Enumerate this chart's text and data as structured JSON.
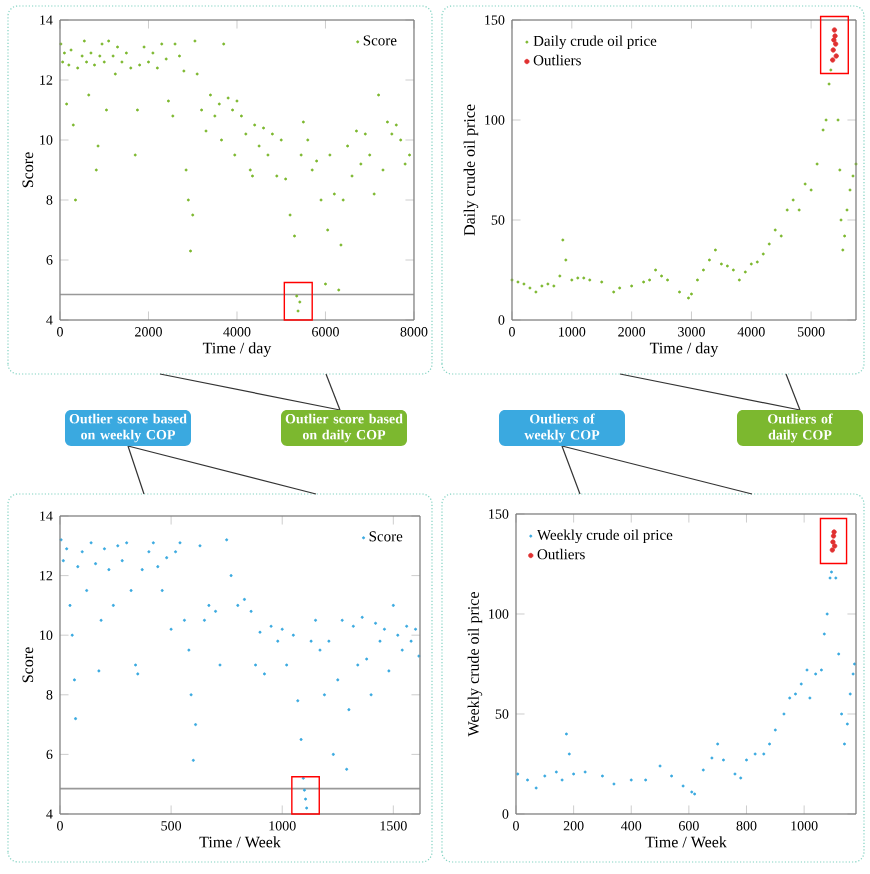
{
  "chart_data": [
    {
      "type": "scatter",
      "xlabel": "Time / day",
      "ylabel": "Score",
      "xlim": [
        0,
        8000
      ],
      "ylim": [
        4,
        14
      ],
      "xticks": [
        0,
        2000,
        4000,
        6000,
        8000
      ],
      "yticks": [
        4,
        6,
        8,
        10,
        12,
        14
      ],
      "legend": "top right",
      "ref_lines": [
        {
          "axis": "y",
          "value": 4.85,
          "color": "#999999"
        }
      ],
      "series": [
        {
          "name": "Score",
          "color": "#7cb82f",
          "x": [
            20,
            60,
            100,
            150,
            200,
            250,
            300,
            350,
            400,
            500,
            550,
            600,
            650,
            700,
            780,
            820,
            860,
            900,
            950,
            1000,
            1050,
            1100,
            1200,
            1250,
            1300,
            1400,
            1500,
            1600,
            1700,
            1750,
            1800,
            1900,
            2000,
            2100,
            2200,
            2300,
            2400,
            2450,
            2550,
            2600,
            2700,
            2800,
            2850,
            2900,
            2950,
            3000,
            3050,
            3100,
            3200,
            3300,
            3400,
            3500,
            3600,
            3650,
            3700,
            3800,
            3900,
            3950,
            4000,
            4100,
            4200,
            4300,
            4350,
            4400,
            4500,
            4600,
            4700,
            4800,
            4900,
            5000,
            5100,
            5200,
            5300,
            5350,
            5380,
            5420,
            5450,
            5500,
            5600,
            5700,
            5800,
            5900,
            6000,
            6050,
            6100,
            6200,
            6300,
            6350,
            6400,
            6500,
            6600,
            6700,
            6800,
            6900,
            7000,
            7100,
            7200,
            7300,
            7400,
            7500,
            7600,
            7700,
            7800,
            7900
          ],
          "values": [
            13.2,
            12.6,
            12.9,
            11.2,
            12.5,
            13.0,
            10.5,
            8.0,
            12.4,
            12.8,
            13.3,
            12.6,
            11.5,
            12.9,
            12.5,
            9.0,
            9.8,
            12.8,
            13.2,
            12.6,
            11.0,
            13.3,
            12.8,
            12.2,
            13.1,
            12.6,
            12.9,
            12.4,
            9.5,
            11.0,
            12.5,
            13.1,
            12.6,
            12.9,
            12.4,
            13.2,
            12.7,
            11.3,
            10.8,
            13.2,
            12.8,
            12.3,
            9.0,
            8.0,
            6.3,
            7.5,
            13.3,
            12.2,
            11.0,
            10.3,
            11.5,
            10.8,
            11.2,
            10.0,
            13.2,
            11.4,
            11.0,
            9.5,
            11.3,
            10.8,
            10.2,
            9.0,
            8.8,
            10.5,
            9.8,
            10.4,
            9.5,
            10.2,
            8.8,
            10.0,
            8.7,
            7.5,
            6.8,
            4.8,
            4.3,
            4.6,
            9.5,
            10.6,
            10.0,
            9.0,
            9.3,
            8.0,
            5.2,
            7.0,
            9.5,
            8.2,
            5.0,
            6.5,
            8.0,
            9.8,
            8.8,
            10.3,
            9.2,
            10.2,
            9.5,
            8.2,
            11.5,
            9.0,
            10.6,
            10.2,
            10.5,
            10.0,
            9.2,
            9.5
          ]
        }
      ]
    },
    {
      "type": "scatter",
      "xlabel": "Time / day",
      "ylabel": "Daily crude oil price",
      "xlim": [
        0,
        5750
      ],
      "ylim": [
        0,
        150
      ],
      "xticks": [
        0,
        1000,
        2000,
        3000,
        4000,
        5000
      ],
      "yticks": [
        0,
        50,
        100,
        150
      ],
      "legend": "top left",
      "series": [
        {
          "name": "Daily crude oil price",
          "color": "#7cb82f",
          "x": [
            0,
            100,
            200,
            300,
            400,
            500,
            600,
            700,
            800,
            850,
            900,
            1000,
            1100,
            1200,
            1300,
            1500,
            1700,
            1800,
            2000,
            2200,
            2300,
            2400,
            2500,
            2600,
            2800,
            2950,
            3000,
            3100,
            3200,
            3300,
            3400,
            3500,
            3600,
            3700,
            3800,
            3900,
            4000,
            4100,
            4200,
            4300,
            4400,
            4500,
            4600,
            4700,
            4800,
            4900,
            5000,
            5100,
            5200,
            5250,
            5300,
            5330,
            5450,
            5480,
            5500,
            5530,
            5560,
            5600,
            5650,
            5700,
            5750
          ],
          "values": [
            20,
            19,
            18,
            16,
            14,
            17,
            18,
            17,
            22,
            40,
            30,
            20,
            21,
            21,
            20,
            19,
            14,
            16,
            17,
            19,
            20,
            25,
            22,
            20,
            14,
            11,
            13,
            20,
            25,
            30,
            35,
            28,
            27,
            25,
            20,
            24,
            28,
            29,
            33,
            38,
            45,
            42,
            55,
            60,
            55,
            68,
            65,
            78,
            95,
            100,
            118,
            125,
            100,
            75,
            50,
            35,
            42,
            55,
            65,
            72,
            78
          ]
        },
        {
          "name": "Outliers",
          "color": "#e03030",
          "x": [
            5360,
            5370,
            5380,
            5390,
            5400,
            5410,
            5420
          ],
          "values": [
            130,
            135,
            140,
            145,
            142,
            138,
            132
          ]
        }
      ]
    },
    {
      "type": "scatter",
      "xlabel": "Time / Week",
      "ylabel": "Score",
      "xlim": [
        0,
        1620
      ],
      "ylim": [
        4,
        14
      ],
      "xticks": [
        0,
        500,
        1000,
        1500
      ],
      "yticks": [
        4,
        6,
        8,
        10,
        12,
        14
      ],
      "legend": "top right",
      "ref_lines": [
        {
          "axis": "y",
          "value": 4.85,
          "color": "#999999"
        }
      ],
      "series": [
        {
          "name": "Score",
          "color": "#3aa9e0",
          "x": [
            5,
            15,
            30,
            45,
            55,
            65,
            70,
            80,
            100,
            120,
            140,
            160,
            175,
            185,
            200,
            220,
            240,
            260,
            280,
            300,
            320,
            340,
            350,
            370,
            400,
            420,
            440,
            460,
            480,
            500,
            520,
            540,
            560,
            580,
            590,
            600,
            610,
            630,
            650,
            670,
            700,
            720,
            750,
            770,
            800,
            830,
            860,
            880,
            900,
            920,
            950,
            980,
            1000,
            1020,
            1050,
            1070,
            1085,
            1095,
            1100,
            1105,
            1110,
            1130,
            1150,
            1170,
            1190,
            1210,
            1230,
            1250,
            1270,
            1290,
            1300,
            1320,
            1340,
            1360,
            1380,
            1400,
            1420,
            1440,
            1460,
            1480,
            1500,
            1520,
            1540,
            1560,
            1580,
            1600,
            1615
          ],
          "values": [
            13.2,
            12.5,
            12.9,
            11.0,
            10.0,
            8.5,
            7.2,
            12.3,
            12.8,
            11.5,
            13.1,
            12.4,
            8.8,
            10.5,
            12.9,
            12.2,
            11.0,
            13.0,
            12.5,
            13.1,
            11.5,
            9.0,
            8.7,
            12.2,
            12.8,
            13.1,
            12.3,
            11.5,
            12.6,
            10.2,
            12.8,
            13.1,
            10.5,
            9.5,
            8.0,
            5.8,
            7.0,
            13.0,
            10.5,
            11.0,
            10.8,
            9.0,
            13.2,
            12.0,
            11.0,
            11.2,
            10.8,
            9.0,
            10.1,
            8.7,
            10.3,
            9.8,
            10.2,
            9.0,
            10.0,
            7.8,
            6.5,
            5.2,
            4.8,
            4.5,
            4.2,
            9.8,
            10.5,
            9.5,
            8.0,
            9.8,
            6.0,
            8.5,
            10.5,
            5.5,
            7.5,
            10.3,
            9.0,
            10.6,
            9.2,
            8.0,
            10.4,
            9.8,
            10.2,
            8.8,
            11.0,
            10.0,
            9.5,
            10.3,
            9.8,
            10.2,
            9.3
          ]
        }
      ]
    },
    {
      "type": "scatter",
      "xlabel": "Time / Week",
      "ylabel": "Weekly crude oil price",
      "xlim": [
        0,
        1180
      ],
      "ylim": [
        0,
        150
      ],
      "xticks": [
        0,
        200,
        400,
        600,
        800,
        1000
      ],
      "yticks": [
        0,
        50,
        100,
        150
      ],
      "legend": "top left",
      "series": [
        {
          "name": "Weekly crude oil price",
          "color": "#3aa9e0",
          "x": [
            6,
            40,
            70,
            100,
            140,
            160,
            175,
            185,
            200,
            240,
            300,
            340,
            400,
            450,
            500,
            540,
            580,
            610,
            620,
            650,
            680,
            700,
            720,
            760,
            780,
            800,
            830,
            860,
            880,
            900,
            930,
            950,
            970,
            990,
            1010,
            1020,
            1040,
            1060,
            1070,
            1080,
            1090,
            1095,
            1110,
            1120,
            1130,
            1140,
            1150,
            1160,
            1170,
            1175
          ],
          "values": [
            20,
            17,
            13,
            19,
            21,
            17,
            40,
            30,
            20,
            21,
            19,
            15,
            17,
            17,
            24,
            19,
            14,
            11,
            10,
            22,
            28,
            35,
            27,
            20,
            18,
            27,
            30,
            30,
            35,
            42,
            50,
            58,
            60,
            65,
            72,
            58,
            70,
            72,
            90,
            100,
            118,
            121,
            118,
            80,
            50,
            35,
            45,
            60,
            70,
            75
          ]
        },
        {
          "name": "Outliers",
          "color": "#e03030",
          "x": [
            1098,
            1100,
            1102,
            1104,
            1106
          ],
          "values": [
            132,
            136,
            139,
            141,
            134
          ]
        }
      ]
    },
    {
      "type": "other",
      "annotations": [
        "Outlier score based on weekly COP",
        "Outlier score based on daily COP",
        "Outliers of weekly COP",
        "Outliers of daily COP"
      ]
    }
  ]
}
